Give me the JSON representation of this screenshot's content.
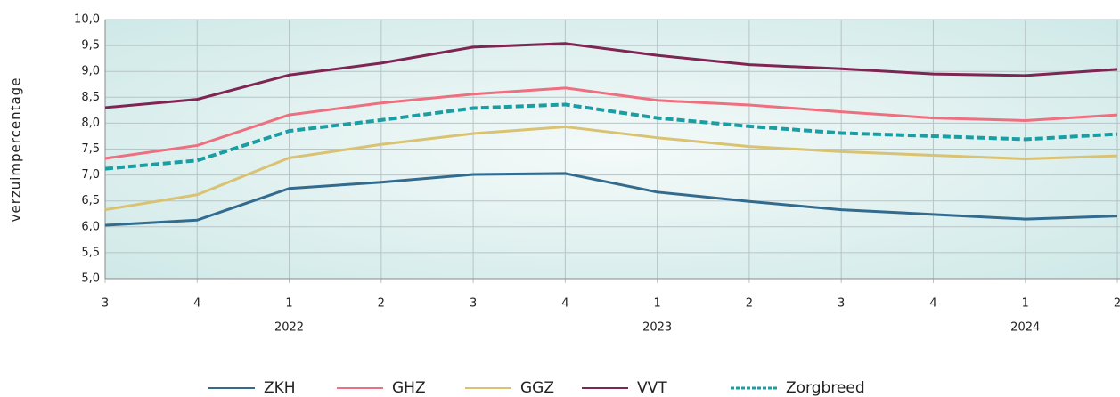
{
  "chart_data": {
    "type": "line",
    "ylabel": "verzuimpercentage",
    "categories": [
      "3",
      "4",
      "1",
      "2",
      "3",
      "4",
      "1",
      "2",
      "3",
      "4",
      "1",
      "2"
    ],
    "year_labels": [
      null,
      null,
      "2022",
      null,
      null,
      null,
      "2023",
      null,
      null,
      null,
      "2024",
      null
    ],
    "ylim": [
      5,
      10
    ],
    "yticks": [
      {
        "value": 5,
        "label": "5,0"
      },
      {
        "value": 5.5,
        "label": "5,5"
      },
      {
        "value": 6,
        "label": "6,0"
      },
      {
        "value": 6.5,
        "label": "6,5"
      },
      {
        "value": 7,
        "label": "7,0"
      },
      {
        "value": 7.5,
        "label": "7,5"
      },
      {
        "value": 8,
        "label": "8,0"
      },
      {
        "value": 8.5,
        "label": "8,5"
      },
      {
        "value": 9,
        "label": "9,0"
      },
      {
        "value": 9.5,
        "label": "9,5"
      },
      {
        "value": 10,
        "label": "10,0"
      }
    ],
    "grid": true,
    "legend": "bottom",
    "series": [
      {
        "name": "ZKH",
        "color": "#336b8f",
        "values": [
          6.03,
          6.13,
          6.74,
          6.86,
          7.01,
          7.03,
          6.67,
          6.49,
          6.33,
          6.24,
          6.15,
          6.21
        ]
      },
      {
        "name": "GHZ",
        "color": "#ee6f7f",
        "values": [
          7.32,
          7.57,
          8.16,
          8.39,
          8.56,
          8.68,
          8.44,
          8.35,
          8.22,
          8.1,
          8.05,
          8.16
        ]
      },
      {
        "name": "GGZ",
        "color": "#d9c272",
        "values": [
          6.33,
          6.62,
          7.33,
          7.59,
          7.8,
          7.93,
          7.72,
          7.55,
          7.45,
          7.38,
          7.31,
          7.37
        ]
      },
      {
        "name": "VVT",
        "color": "#7f2553",
        "values": [
          8.3,
          8.46,
          8.93,
          9.16,
          9.47,
          9.54,
          9.31,
          9.13,
          9.05,
          8.95,
          8.92,
          9.04
        ]
      },
      {
        "name": "Zorgbreed",
        "color": "#1a9ea3",
        "dashed": true,
        "values": [
          7.12,
          7.28,
          7.85,
          8.06,
          8.29,
          8.36,
          8.1,
          7.94,
          7.81,
          7.75,
          7.69,
          7.79
        ]
      }
    ]
  }
}
